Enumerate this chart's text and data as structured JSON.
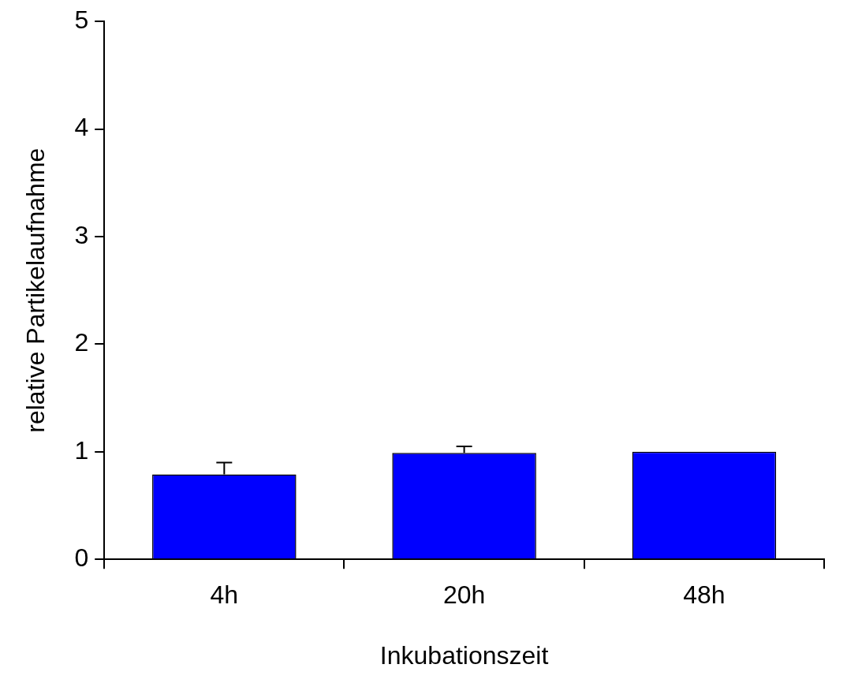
{
  "chart_data": {
    "type": "bar",
    "xlabel": "Inkubationszeit",
    "ylabel": "relative Partikelaufnahme",
    "categories": [
      "4h",
      "20h",
      "48h"
    ],
    "values": [
      0.79,
      0.99,
      1.0
    ],
    "errors": [
      [
        0.79,
        0.9
      ],
      [
        0.99,
        1.05
      ],
      null
    ],
    "color": "#0000ff",
    "ylim": [
      0,
      5
    ],
    "yticks": [
      0,
      1,
      2,
      3,
      4,
      5
    ],
    "grid": false,
    "legend": false
  }
}
